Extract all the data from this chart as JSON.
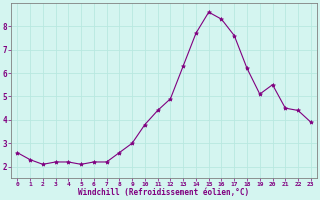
{
  "x": [
    0,
    1,
    2,
    3,
    4,
    5,
    6,
    7,
    8,
    9,
    10,
    11,
    12,
    13,
    14,
    15,
    16,
    17,
    18,
    19,
    20,
    21,
    22,
    23
  ],
  "y": [
    2.6,
    2.3,
    2.1,
    2.2,
    2.2,
    2.1,
    2.2,
    2.2,
    2.6,
    3.0,
    3.8,
    4.4,
    4.9,
    6.3,
    7.7,
    8.6,
    8.3,
    7.6,
    6.2,
    5.1,
    5.5,
    4.5,
    4.4,
    3.9
  ],
  "line_color": "#800080",
  "marker": "*",
  "marker_color": "#800080",
  "bg_color": "#d4f5f0",
  "grid_color": "#b8e8e0",
  "axis_label_color": "#800080",
  "tick_color": "#800080",
  "xlabel": "Windchill (Refroidissement éolien,°C)",
  "xlim": [
    -0.5,
    23.5
  ],
  "ylim": [
    1.5,
    9.0
  ],
  "yticks": [
    2,
    3,
    4,
    5,
    6,
    7,
    8
  ],
  "xticks": [
    0,
    1,
    2,
    3,
    4,
    5,
    6,
    7,
    8,
    9,
    10,
    11,
    12,
    13,
    14,
    15,
    16,
    17,
    18,
    19,
    20,
    21,
    22,
    23
  ],
  "spine_color": "#808080",
  "figsize": [
    3.2,
    2.0
  ],
  "dpi": 100
}
